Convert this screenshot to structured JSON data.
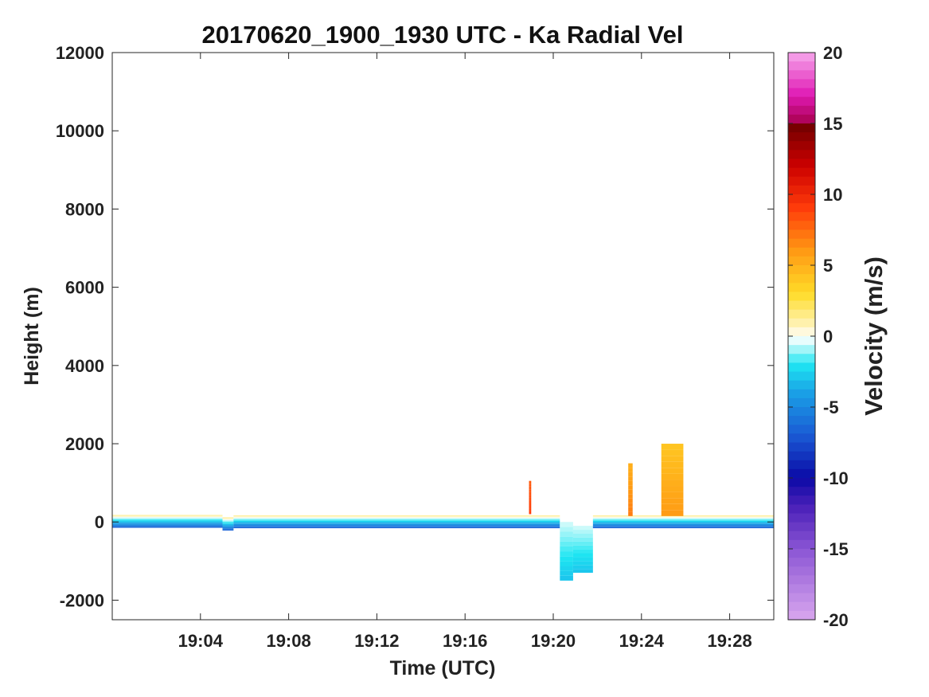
{
  "chart_data": {
    "type": "heatmap",
    "title": "20170620_1900_1930 UTC - Ka Radial Vel",
    "xlabel": "Time (UTC)",
    "ylabel": "Height (m)",
    "colorbar_label": "Velocity (m/s)",
    "xlim_minutes": [
      0,
      30
    ],
    "x_ticks": [
      {
        "value": 4,
        "label": "19:04"
      },
      {
        "value": 8,
        "label": "19:08"
      },
      {
        "value": 12,
        "label": "19:12"
      },
      {
        "value": 16,
        "label": "19:16"
      },
      {
        "value": 20,
        "label": "19:20"
      },
      {
        "value": 24,
        "label": "19:24"
      },
      {
        "value": 28,
        "label": "19:28"
      }
    ],
    "ylim": [
      -2500,
      12000
    ],
    "y_ticks": [
      {
        "value": 12000,
        "label": "12000"
      },
      {
        "value": 10000,
        "label": "10000"
      },
      {
        "value": 8000,
        "label": "8000"
      },
      {
        "value": 6000,
        "label": "6000"
      },
      {
        "value": 4000,
        "label": "4000"
      },
      {
        "value": 2000,
        "label": "2000"
      },
      {
        "value": 0,
        "label": "0"
      },
      {
        "value": -2000,
        "label": "-2000"
      }
    ],
    "clim": [
      -20,
      20
    ],
    "c_ticks": [
      {
        "value": 20,
        "label": "20"
      },
      {
        "value": 15,
        "label": "15"
      },
      {
        "value": 10,
        "label": "10"
      },
      {
        "value": 5,
        "label": "5"
      },
      {
        "value": 0,
        "label": "0"
      },
      {
        "value": -5,
        "label": "-5"
      },
      {
        "value": -10,
        "label": "-10"
      },
      {
        "value": -15,
        "label": "-15"
      },
      {
        "value": -20,
        "label": "-20"
      }
    ],
    "colormap_stops": [
      {
        "v": -20,
        "color": "#d9a6ee"
      },
      {
        "v": -15,
        "color": "#8a55d4"
      },
      {
        "v": -12,
        "color": "#4a20b8"
      },
      {
        "v": -10,
        "color": "#0a0aa6"
      },
      {
        "v": -7,
        "color": "#1a5ad4"
      },
      {
        "v": -4,
        "color": "#1aa0e6"
      },
      {
        "v": -2,
        "color": "#1ee6f2"
      },
      {
        "v": -0.5,
        "color": "#d8fbfb"
      },
      {
        "v": 0,
        "color": "#ffffff"
      },
      {
        "v": 0.5,
        "color": "#fff6c8"
      },
      {
        "v": 3,
        "color": "#ffdc28"
      },
      {
        "v": 6,
        "color": "#ff9a14"
      },
      {
        "v": 9,
        "color": "#ff3c0a"
      },
      {
        "v": 12,
        "color": "#cc0000"
      },
      {
        "v": 15,
        "color": "#6e0000"
      },
      {
        "v": 15.01,
        "color": "#a8004e"
      },
      {
        "v": 17,
        "color": "#e01ab4"
      },
      {
        "v": 20,
        "color": "#f6a8ec"
      }
    ],
    "series": [
      {
        "t_start": 0,
        "t_end": 5.0,
        "z_bottom": -150,
        "z_top": 180,
        "v_bottom": -7,
        "v_top": 1.5
      },
      {
        "t_start": 5.0,
        "t_end": 5.5,
        "z_bottom": -220,
        "z_top": 120,
        "v_bottom": -7,
        "v_top": 1.5
      },
      {
        "t_start": 5.5,
        "t_end": 20.3,
        "z_bottom": -160,
        "z_top": 170,
        "v_bottom": -7,
        "v_top": 1.5
      },
      {
        "t_start": 20.3,
        "t_end": 20.9,
        "z_bottom": -1500,
        "z_top": 0,
        "v_bottom": -3,
        "v_top": -0.5
      },
      {
        "t_start": 20.9,
        "t_end": 21.8,
        "z_bottom": -1300,
        "z_top": -100,
        "v_bottom": -3,
        "v_top": -0.5
      },
      {
        "t_start": 21.8,
        "t_end": 30,
        "z_bottom": -160,
        "z_top": 170,
        "v_bottom": -7,
        "v_top": 1.5
      },
      {
        "t_start": 18.9,
        "t_end": 19.0,
        "z_bottom": 200,
        "z_top": 1050,
        "v_bottom": 9,
        "v_top": 8
      },
      {
        "t_start": 23.4,
        "t_end": 23.6,
        "z_bottom": 150,
        "z_top": 1500,
        "v_bottom": 7,
        "v_top": 5
      },
      {
        "t_start": 24.9,
        "t_end": 25.9,
        "z_bottom": 150,
        "z_top": 2000,
        "v_bottom": 6,
        "v_top": 4
      }
    ]
  }
}
